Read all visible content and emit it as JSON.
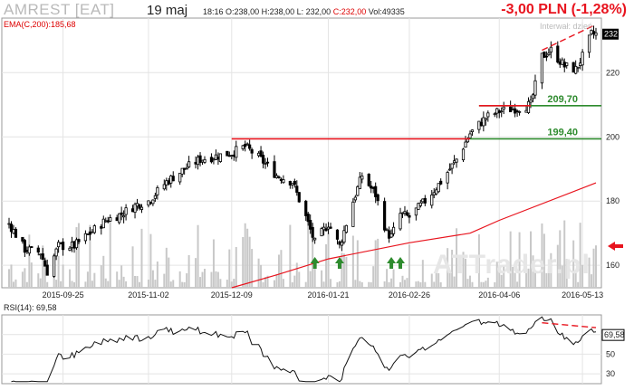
{
  "header": {
    "ticker": "AMREST [EAT]",
    "date": "19 maj",
    "time": "18:16",
    "open": "O:238,00",
    "high": "H:238,00",
    "low": "L: 232,00",
    "close": "C:232,00",
    "volume": "Vol:49335",
    "change": "-3,00 PLN (-1,28%)",
    "interval": "Interwał: dzień",
    "ema_label": "EMA(C,200):185,68",
    "rsi_label": "RSI(14): 69,58",
    "watermark": "ATTrader.pl"
  },
  "colors": {
    "candle": "#000000",
    "volume": "#c8c8c8",
    "ema": "#e8141e",
    "support_green": "#2e8b2e",
    "resistance_red": "#e8141e",
    "arrow_green": "#2e8b2e",
    "arrow_red": "#e8141e",
    "grid": "#e4e4e4"
  },
  "chart_data": [
    {
      "type": "candlestick",
      "y_axis_side": "right",
      "ylim": [
        153,
        237
      ],
      "yticks": [
        160,
        180,
        200,
        220
      ],
      "last_price_label": "232",
      "x_ticks": [
        "2015-09-25",
        "2015-11-02",
        "2015-12-09",
        "2016-01-21",
        "2016-02-26",
        "2016-04-06",
        "2016-05-13"
      ],
      "grid": true,
      "close_approx": [
        {
          "x": "2015-09-01",
          "y": 173
        },
        {
          "x": "2015-09-08",
          "y": 165
        },
        {
          "x": "2015-09-15",
          "y": 164
        },
        {
          "x": "2015-09-18",
          "y": 158
        },
        {
          "x": "2015-09-23",
          "y": 166
        },
        {
          "x": "2015-09-30",
          "y": 166
        },
        {
          "x": "2015-10-07",
          "y": 170
        },
        {
          "x": "2015-10-14",
          "y": 174
        },
        {
          "x": "2015-10-21",
          "y": 176
        },
        {
          "x": "2015-10-28",
          "y": 179
        },
        {
          "x": "2015-11-02",
          "y": 180
        },
        {
          "x": "2015-11-10",
          "y": 186
        },
        {
          "x": "2015-11-18",
          "y": 190
        },
        {
          "x": "2015-11-25",
          "y": 193
        },
        {
          "x": "2015-12-02",
          "y": 194
        },
        {
          "x": "2015-12-09",
          "y": 195
        },
        {
          "x": "2015-12-15",
          "y": 197
        },
        {
          "x": "2015-12-22",
          "y": 193
        },
        {
          "x": "2015-12-29",
          "y": 188
        },
        {
          "x": "2016-01-05",
          "y": 186
        },
        {
          "x": "2016-01-11",
          "y": 175
        },
        {
          "x": "2016-01-15",
          "y": 167
        },
        {
          "x": "2016-01-21",
          "y": 173
        },
        {
          "x": "2016-01-26",
          "y": 166
        },
        {
          "x": "2016-02-01",
          "y": 180
        },
        {
          "x": "2016-02-05",
          "y": 188
        },
        {
          "x": "2016-02-11",
          "y": 182
        },
        {
          "x": "2016-02-16",
          "y": 170
        },
        {
          "x": "2016-02-18",
          "y": 169
        },
        {
          "x": "2016-02-22",
          "y": 176
        },
        {
          "x": "2016-02-26",
          "y": 175
        },
        {
          "x": "2016-03-04",
          "y": 180
        },
        {
          "x": "2016-03-11",
          "y": 186
        },
        {
          "x": "2016-03-18",
          "y": 193
        },
        {
          "x": "2016-03-24",
          "y": 201
        },
        {
          "x": "2016-03-31",
          "y": 206
        },
        {
          "x": "2016-04-06",
          "y": 208
        },
        {
          "x": "2016-04-14",
          "y": 209
        },
        {
          "x": "2016-04-20",
          "y": 210
        },
        {
          "x": "2016-04-25",
          "y": 225
        },
        {
          "x": "2016-04-29",
          "y": 227
        },
        {
          "x": "2016-05-05",
          "y": 222
        },
        {
          "x": "2016-05-10",
          "y": 221
        },
        {
          "x": "2016-05-13",
          "y": 225
        },
        {
          "x": "2016-05-17",
          "y": 232
        },
        {
          "x": "2016-05-19",
          "y": 232
        }
      ]
    },
    {
      "type": "line",
      "name": "EMA(C,200):185,68",
      "points": [
        {
          "x": "2015-12-09",
          "y": 153
        },
        {
          "x": "2015-12-29",
          "y": 157
        },
        {
          "x": "2016-01-21",
          "y": 162
        },
        {
          "x": "2016-02-26",
          "y": 167
        },
        {
          "x": "2016-03-24",
          "y": 170
        },
        {
          "x": "2016-04-06",
          "y": 174
        },
        {
          "x": "2016-05-19",
          "y": 185.68
        }
      ]
    },
    {
      "type": "annotations",
      "horizontal_levels": [
        {
          "value": 199.4,
          "label": "199,40",
          "color": "green"
        },
        {
          "value": 209.7,
          "label": "209,70",
          "color": "green"
        },
        {
          "value": 199.4,
          "label": "",
          "color": "red",
          "from": "2015-12-09",
          "to": "2016-03-24"
        },
        {
          "value": 209.7,
          "label": "",
          "color": "red",
          "from": "2016-03-28",
          "to": "2016-04-20"
        }
      ],
      "buy_arrows": [
        "2016-01-15",
        "2016-01-26",
        "2016-02-18",
        "2016-02-22"
      ],
      "dashed_trendline": {
        "from": {
          "x": "2016-04-25",
          "y": 227
        },
        "to": {
          "x": "2016-05-19",
          "y": 235
        }
      }
    },
    {
      "type": "line",
      "name": "RSI(14): 69,58",
      "ylim": [
        20,
        90
      ],
      "yticks": [
        30,
        50,
        70
      ],
      "last_value_label": "69,58",
      "dashed_divergence": {
        "from": {
          "x": "2016-04-25",
          "y": 82
        },
        "to": {
          "x": "2016-05-19",
          "y": 77
        }
      }
    }
  ]
}
